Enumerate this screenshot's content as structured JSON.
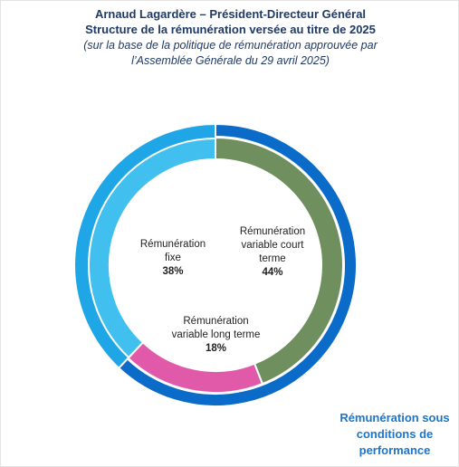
{
  "chart_data": {
    "type": "donut",
    "title": [
      "Arnaud Lagardère – Président-Directeur Général",
      "Structure de la rémunération versée au titre de 2025"
    ],
    "subtitle": [
      "(sur la base de la politique de rémunération approuvée par",
      "l’Assemblée Générale du 29 avril 2025)"
    ],
    "categories": [
      "Rémunération variable court terme",
      "Rémunération variable long terme",
      "Rémunération fixe"
    ],
    "values": [
      44,
      18,
      38
    ],
    "value_labels": [
      "44%",
      "18%",
      "38%"
    ],
    "colors": [
      "#6f8f5f",
      "#e15aa9",
      "#41c0f0"
    ],
    "outer_ring": {
      "annotation": "Rémunération sous conditions de performance",
      "color": "#0b6bc9",
      "other_color": "#1fa6e6"
    }
  }
}
